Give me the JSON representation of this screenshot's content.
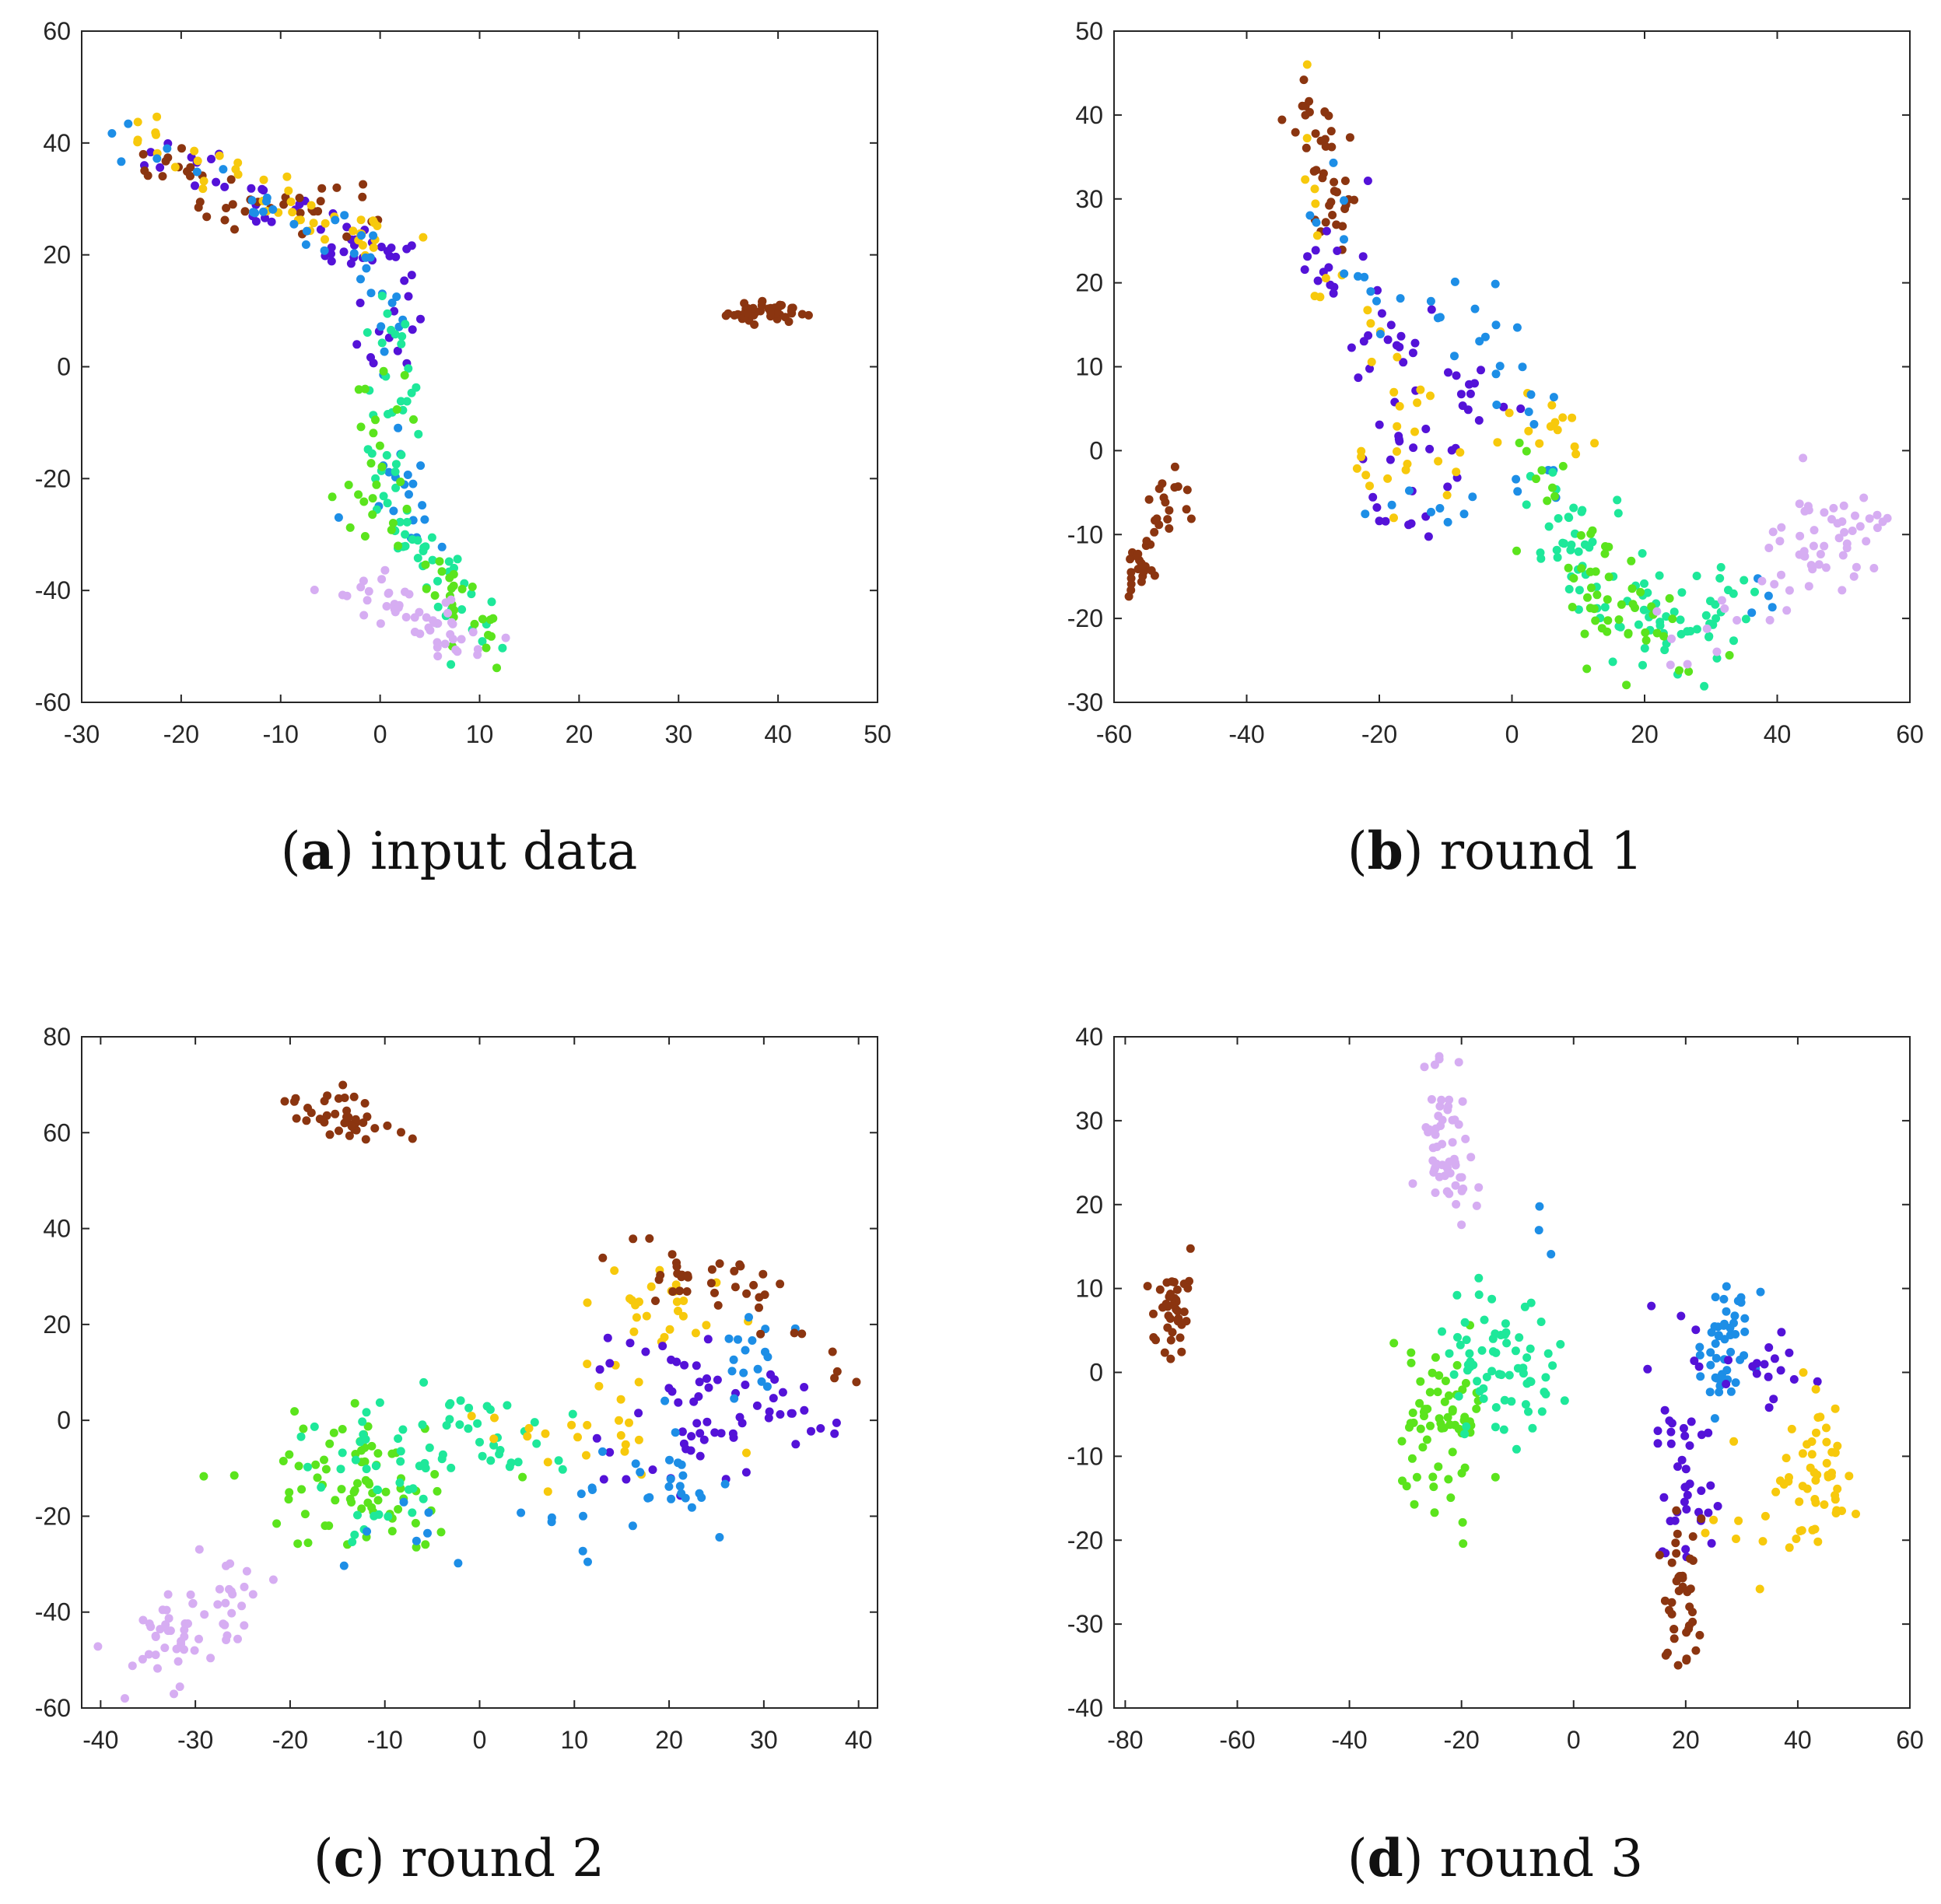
{
  "colors": {
    "brown": "#8b3510",
    "purple": "#5412d8",
    "blue": "#1d8ee6",
    "yellow": "#f7c90c",
    "teal": "#1ee89a",
    "green": "#5be41d",
    "lavender": "#d6adf2"
  },
  "chart_data": [
    {
      "type": "scatter",
      "caption_letter": "a",
      "caption_text": "input data",
      "xlim": [
        -30,
        50
      ],
      "ylim": [
        -60,
        60
      ],
      "xticks": [
        -30,
        -20,
        -10,
        0,
        10,
        20,
        30,
        40,
        50
      ],
      "yticks": [
        -60,
        -40,
        -20,
        0,
        20,
        40,
        60
      ],
      "grid": false,
      "clusters": [
        {
          "color": "purple",
          "n": 60,
          "pts": [
            [
              -24,
              40
            ],
            [
              -16,
              33
            ],
            [
              -8,
              27
            ],
            [
              -3,
              22
            ],
            [
              0,
              20
            ],
            [
              1,
              8
            ],
            [
              2,
              4
            ]
          ],
          "sx": 2.2,
          "sy": 2.2
        },
        {
          "color": "brown",
          "n": 40,
          "pts": [
            [
              -24,
              38
            ],
            [
              -18,
              31
            ],
            [
              -12,
              28
            ],
            [
              -6,
              30
            ],
            [
              -2,
              28
            ]
          ],
          "sx": 2.0,
          "sy": 2.0
        },
        {
          "color": "yellow",
          "n": 45,
          "pts": [
            [
              -24,
              41
            ],
            [
              -17,
              33
            ],
            [
              -10,
              30
            ],
            [
              -5,
              25
            ],
            [
              0,
              24
            ],
            [
              2,
              26
            ]
          ],
          "sx": 2.2,
          "sy": 2.2
        },
        {
          "color": "blue",
          "n": 55,
          "pts": [
            [
              -26,
              43
            ],
            [
              -15,
              30
            ],
            [
              -9,
              28
            ],
            [
              -5,
              20
            ],
            [
              -1,
              18
            ],
            [
              1,
              10
            ],
            [
              1,
              -10
            ],
            [
              2,
              -25
            ],
            [
              4,
              -30
            ]
          ],
          "sx": 2.0,
          "sy": 2.2
        },
        {
          "color": "teal",
          "n": 70,
          "pts": [
            [
              1,
              10
            ],
            [
              1,
              0
            ],
            [
              1,
              -10
            ],
            [
              1,
              -20
            ],
            [
              2,
              -28
            ],
            [
              5,
              -34
            ],
            [
              8,
              -42
            ],
            [
              10,
              -48
            ]
          ],
          "sx": 1.3,
          "sy": 3.0
        },
        {
          "color": "green",
          "n": 50,
          "pts": [
            [
              1,
              5
            ],
            [
              0,
              -15
            ],
            [
              -1,
              -25
            ],
            [
              3,
              -33
            ],
            [
              7,
              -38
            ],
            [
              10,
              -44
            ],
            [
              11,
              -52
            ]
          ],
          "sx": 1.5,
          "sy": 2.5
        },
        {
          "color": "lavender",
          "n": 50,
          "pts": [
            [
              -2,
              -38
            ],
            [
              1,
              -42
            ],
            [
              6,
              -47
            ],
            [
              8,
              -50
            ]
          ],
          "sx": 2.2,
          "sy": 1.8
        },
        {
          "color": "brown",
          "n": 45,
          "pts": [
            [
              36,
              10
            ],
            [
              39,
              10
            ],
            [
              42,
              10
            ]
          ],
          "sx": 1.3,
          "sy": 1.1
        }
      ]
    },
    {
      "type": "scatter",
      "caption_letter": "b",
      "caption_text": "round 1",
      "xlim": [
        -60,
        60
      ],
      "ylim": [
        -30,
        50
      ],
      "xticks": [
        -60,
        -40,
        -20,
        0,
        20,
        40,
        60
      ],
      "yticks": [
        -30,
        -20,
        -10,
        0,
        10,
        20,
        30,
        40,
        50
      ],
      "grid": false,
      "clusters": [
        {
          "color": "brown",
          "n": 40,
          "pts": [
            [
              -35,
              41
            ],
            [
              -29,
              40
            ],
            [
              -28,
              36
            ],
            [
              -27,
              30
            ],
            [
              -26,
              25
            ]
          ],
          "sx": 2.0,
          "sy": 2.2
        },
        {
          "color": "purple",
          "n": 65,
          "pts": [
            [
              -29,
              30
            ],
            [
              -27,
              22
            ],
            [
              -23,
              13
            ],
            [
              -18,
              12
            ],
            [
              -10,
              9
            ],
            [
              -5,
              5
            ],
            [
              -8,
              -2
            ],
            [
              -20,
              -2
            ],
            [
              -14,
              -4
            ]
          ],
          "sx": 3.0,
          "sy": 3.0
        },
        {
          "color": "yellow",
          "n": 50,
          "pts": [
            [
              -31,
              43
            ],
            [
              -30,
              25
            ],
            [
              -22,
              12
            ],
            [
              -15,
              5
            ],
            [
              -20,
              -5
            ],
            [
              5,
              8
            ],
            [
              10,
              4
            ],
            [
              2,
              -2
            ]
          ],
          "sx": 2.5,
          "sy": 2.5
        },
        {
          "color": "blue",
          "n": 50,
          "pts": [
            [
              -27,
              35
            ],
            [
              -25,
              25
            ],
            [
              -18,
              18
            ],
            [
              -8,
              15
            ],
            [
              -2,
              13
            ],
            [
              2,
              3
            ],
            [
              5,
              -8
            ],
            [
              -20,
              -7
            ],
            [
              38,
              -14
            ],
            [
              40,
              -20
            ]
          ],
          "sx": 2.5,
          "sy": 2.5
        },
        {
          "color": "teal",
          "n": 90,
          "pts": [
            [
              5,
              -5
            ],
            [
              10,
              -10
            ],
            [
              15,
              -16
            ],
            [
              20,
              -20
            ],
            [
              25,
              -23
            ],
            [
              30,
              -20
            ],
            [
              35,
              -17
            ]
          ],
          "sx": 4.0,
          "sy": 3.0
        },
        {
          "color": "green",
          "n": 55,
          "pts": [
            [
              3,
              0
            ],
            [
              8,
              -8
            ],
            [
              12,
              -18
            ],
            [
              18,
              -22
            ],
            [
              25,
              -22
            ],
            [
              10,
              -14
            ]
          ],
          "sx": 3.2,
          "sy": 3.0
        },
        {
          "color": "lavender",
          "n": 65,
          "pts": [
            [
              40,
              -9
            ],
            [
              45,
              -7
            ],
            [
              50,
              -10
            ],
            [
              55,
              -8
            ],
            [
              45,
              -13
            ],
            [
              25,
              -26
            ]
          ],
          "sx": 3.5,
          "sy": 2.0
        },
        {
          "color": "brown",
          "n": 40,
          "pts": [
            [
              -56,
              -15
            ],
            [
              -55,
              -11
            ],
            [
              -53,
              -8
            ],
            [
              -50,
              -7
            ]
          ],
          "sx": 1.5,
          "sy": 2.0
        }
      ]
    },
    {
      "type": "scatter",
      "caption_letter": "c",
      "caption_text": "round 2",
      "xlim": [
        -42,
        42
      ],
      "ylim": [
        -60,
        80
      ],
      "xticks": [
        -40,
        -30,
        -20,
        -10,
        0,
        10,
        20,
        30,
        40
      ],
      "yticks": [
        -60,
        -40,
        -20,
        0,
        20,
        40,
        60,
        80
      ],
      "grid": false,
      "clusters": [
        {
          "color": "brown",
          "n": 40,
          "pts": [
            [
              -20,
              65
            ],
            [
              -16,
              65
            ],
            [
              -13,
              64
            ],
            [
              -14,
              60
            ],
            [
              -11,
              61
            ]
          ],
          "sx": 1.6,
          "sy": 2.0
        },
        {
          "color": "lavender",
          "n": 60,
          "pts": [
            [
              -35,
              -52
            ],
            [
              -32,
              -48
            ],
            [
              -30,
              -42
            ],
            [
              -28,
              -38
            ],
            [
              -26,
              -33
            ]
          ],
          "sx": 2.5,
          "sy": 3.5
        },
        {
          "color": "green",
          "n": 75,
          "pts": [
            [
              -33,
              -15
            ],
            [
              -20,
              -8
            ],
            [
              -15,
              -5
            ],
            [
              -10,
              -10
            ],
            [
              -18,
              -15
            ],
            [
              -12,
              -20
            ],
            [
              -5,
              -15
            ]
          ],
          "sx": 3.5,
          "sy": 5.0
        },
        {
          "color": "teal",
          "n": 70,
          "pts": [
            [
              -18,
              -5
            ],
            [
              -10,
              -3
            ],
            [
              -5,
              -8
            ],
            [
              0,
              0
            ],
            [
              5,
              -5
            ],
            [
              -15,
              -20
            ],
            [
              -8,
              -15
            ]
          ],
          "sx": 4.0,
          "sy": 5.0
        },
        {
          "color": "yellow",
          "n": 50,
          "pts": [
            [
              5,
              5
            ],
            [
              8,
              -5
            ],
            [
              12,
              0
            ],
            [
              15,
              10
            ],
            [
              17,
              30
            ],
            [
              22,
              20
            ],
            [
              25,
              -10
            ]
          ],
          "sx": 3.0,
          "sy": 5.0
        },
        {
          "color": "purple",
          "n": 65,
          "pts": [
            [
              15,
              15
            ],
            [
              20,
              10
            ],
            [
              25,
              5
            ],
            [
              30,
              0
            ],
            [
              33,
              -3
            ],
            [
              35,
              10
            ],
            [
              20,
              -5
            ],
            [
              16,
              -10
            ]
          ],
          "sx": 3.5,
          "sy": 5.0
        },
        {
          "color": "blue",
          "n": 55,
          "pts": [
            [
              29,
              18
            ],
            [
              30,
              14
            ],
            [
              18,
              -8
            ],
            [
              25,
              -17
            ],
            [
              -20,
              -27
            ],
            [
              32,
              -12
            ]
          ],
          "sx": 2.5,
          "sy": 4.0
        },
        {
          "color": "brown",
          "n": 40,
          "pts": [
            [
              18,
              35
            ],
            [
              22,
              28
            ],
            [
              28,
              30
            ],
            [
              30,
              28
            ],
            [
              35,
              8
            ]
          ],
          "sx": 2.8,
          "sy": 2.5
        }
      ]
    },
    {
      "type": "scatter",
      "caption_letter": "d",
      "caption_text": "round 3",
      "xlim": [
        -82,
        60
      ],
      "ylim": [
        -40,
        40
      ],
      "xticks": [
        -80,
        -60,
        -40,
        -20,
        0,
        20,
        40,
        60
      ],
      "yticks": [
        -40,
        -30,
        -20,
        -10,
        0,
        10,
        20,
        30,
        40
      ],
      "grid": false,
      "clusters": [
        {
          "color": "brown",
          "n": 40,
          "pts": [
            [
              -73,
              4
            ],
            [
              -73,
              8
            ],
            [
              -70,
              10
            ],
            [
              -72,
              2
            ]
          ],
          "sx": 1.5,
          "sy": 2.5
        },
        {
          "color": "lavender",
          "n": 60,
          "pts": [
            [
              -24,
              38
            ],
            [
              -22,
              32
            ],
            [
              -21,
              27
            ],
            [
              -24,
              24
            ],
            [
              -20,
              22
            ]
          ],
          "sx": 2.2,
          "sy": 2.5
        },
        {
          "color": "green",
          "n": 70,
          "pts": [
            [
              -30,
              -3
            ],
            [
              -25,
              2
            ],
            [
              -25,
              -8
            ],
            [
              -20,
              -4
            ],
            [
              -18,
              -10
            ],
            [
              -28,
              -10
            ]
          ],
          "sx": 3.5,
          "sy": 4.0
        },
        {
          "color": "teal",
          "n": 70,
          "pts": [
            [
              -18,
              3
            ],
            [
              -12,
              2
            ],
            [
              -8,
              -2
            ],
            [
              -5,
              1
            ],
            [
              -15,
              -5
            ],
            [
              -20,
              5
            ]
          ],
          "sx": 4.0,
          "sy": 4.0
        },
        {
          "color": "blue",
          "n": 50,
          "pts": [
            [
              -7,
              19
            ],
            [
              25,
              -1
            ],
            [
              27,
              -2
            ],
            [
              27,
              8
            ],
            [
              32,
              4
            ]
          ],
          "sx": 1.5,
          "sy": 2.2
        },
        {
          "color": "purple",
          "n": 60,
          "pts": [
            [
              20,
              -8
            ],
            [
              22,
              -12
            ],
            [
              20,
              -18
            ],
            [
              17,
              -15
            ],
            [
              15,
              8
            ],
            [
              36,
              -1
            ],
            [
              42,
              5
            ]
          ],
          "sx": 2.5,
          "sy": 3.5
        },
        {
          "color": "yellow",
          "n": 60,
          "pts": [
            [
              38,
              -18
            ],
            [
              42,
              -10
            ],
            [
              45,
              -15
            ],
            [
              44,
              -6
            ],
            [
              38,
              -23
            ],
            [
              24,
              -20
            ]
          ],
          "sx": 2.8,
          "sy": 4.0
        },
        {
          "color": "brown",
          "n": 40,
          "pts": [
            [
              18,
              -24
            ],
            [
              19,
              -27
            ],
            [
              20,
              -30
            ],
            [
              16,
              -32
            ],
            [
              20,
              -20
            ]
          ],
          "sx": 2.0,
          "sy": 2.5
        }
      ]
    }
  ]
}
